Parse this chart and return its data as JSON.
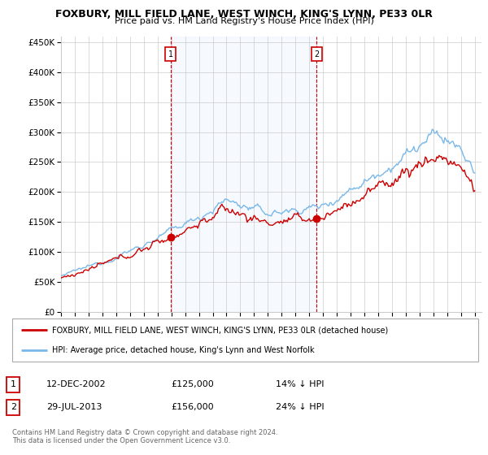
{
  "title": "FOXBURY, MILL FIELD LANE, WEST WINCH, KING'S LYNN, PE33 0LR",
  "subtitle": "Price paid vs. HM Land Registry's House Price Index (HPI)",
  "legend_line1": "FOXBURY, MILL FIELD LANE, WEST WINCH, KING'S LYNN, PE33 0LR (detached house)",
  "legend_line2": "HPI: Average price, detached house, King's Lynn and West Norfolk",
  "transaction1_date": "12-DEC-2002",
  "transaction1_price": "£125,000",
  "transaction1_hpi": "14% ↓ HPI",
  "transaction2_date": "29-JUL-2013",
  "transaction2_price": "£156,000",
  "transaction2_hpi": "24% ↓ HPI",
  "footer": "Contains HM Land Registry data © Crown copyright and database right 2024.\nThis data is licensed under the Open Government Licence v3.0.",
  "hpi_color": "#7ab8e8",
  "price_color": "#cc0000",
  "vline_color": "#cc0000",
  "shade_color": "#ddeeff",
  "ylim": [
    0,
    460000
  ],
  "yticks": [
    0,
    50000,
    100000,
    150000,
    200000,
    250000,
    300000,
    350000,
    400000,
    450000
  ],
  "t1_year": 2002.958,
  "t2_year": 2013.542,
  "t1_price": 125000,
  "t2_price": 156000
}
